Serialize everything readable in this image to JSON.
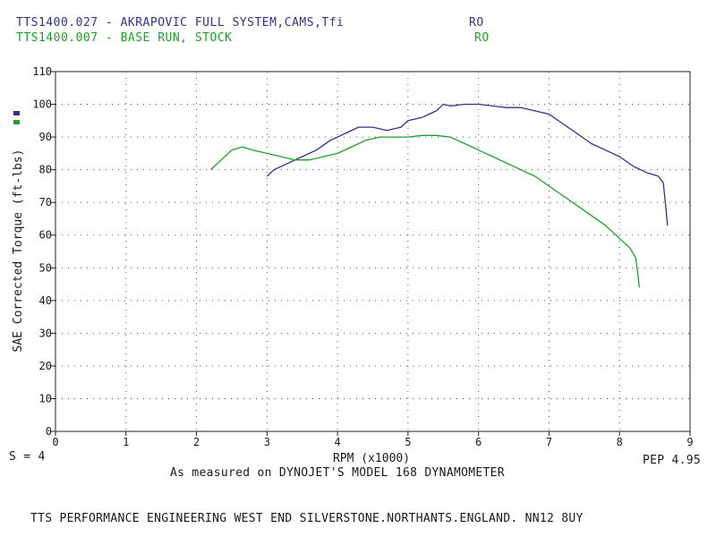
{
  "header": {
    "run1": {
      "name": "TTS1400.027 - AKRAPOVIC FULL SYSTEM,CAMS,Tfi",
      "tag": "RO",
      "color": "#33338a"
    },
    "run2": {
      "name": "TTS1400.007 - BASE RUN, STOCK",
      "tag": "RO",
      "color": "#1fa02c"
    }
  },
  "footer": {
    "smoothing": "S = 4",
    "measure_note": "As measured on DYNOJET'S MODEL 168 DYNAMOMETER",
    "version": "PEP 4.95",
    "company": "TTS PERFORMANCE ENGINEERING WEST END SILVERSTONE.NORTHANTS.ENGLAND. NN12 8UY"
  },
  "chart_data": {
    "type": "line",
    "xlabel": "RPM (x1000)",
    "ylabel": "SAE Corrected Torque (ft-lbs)",
    "xlim": [
      0,
      9
    ],
    "ylim": [
      0,
      110
    ],
    "x_ticks": [
      0,
      1,
      2,
      3,
      4,
      5,
      6,
      7,
      8,
      9
    ],
    "y_ticks": [
      0,
      10,
      20,
      30,
      40,
      50,
      60,
      70,
      80,
      90,
      100,
      110
    ],
    "grid": true,
    "series": [
      {
        "name": "TTS1400.027",
        "color": "#33338a",
        "x": [
          3.0,
          3.1,
          3.3,
          3.5,
          3.7,
          3.9,
          4.0,
          4.1,
          4.3,
          4.5,
          4.7,
          4.9,
          5.0,
          5.2,
          5.4,
          5.5,
          5.6,
          5.8,
          6.0,
          6.2,
          6.4,
          6.6,
          6.8,
          7.0,
          7.2,
          7.4,
          7.6,
          7.8,
          8.0,
          8.2,
          8.4,
          8.55,
          8.62,
          8.65,
          8.68
        ],
        "y": [
          78,
          80,
          82,
          84,
          86,
          89,
          90,
          91,
          93,
          93,
          92,
          93,
          95,
          96,
          98,
          100,
          99.5,
          100,
          100,
          99.5,
          99,
          99,
          98,
          97,
          94,
          91,
          88,
          86,
          84,
          81,
          79,
          78,
          76,
          70,
          63
        ]
      },
      {
        "name": "TTS1400.007",
        "color": "#1fa02c",
        "x": [
          2.2,
          2.35,
          2.5,
          2.65,
          2.8,
          3.0,
          3.2,
          3.4,
          3.6,
          3.8,
          4.0,
          4.2,
          4.4,
          4.6,
          4.8,
          5.0,
          5.2,
          5.4,
          5.6,
          5.8,
          6.0,
          6.2,
          6.4,
          6.6,
          6.8,
          7.0,
          7.2,
          7.4,
          7.6,
          7.8,
          8.0,
          8.15,
          8.23,
          8.26,
          8.28
        ],
        "y": [
          80,
          83,
          86,
          87,
          86,
          85,
          84,
          83,
          83,
          84,
          85,
          87,
          89,
          90,
          90,
          90,
          90.5,
          90.5,
          90,
          88,
          86,
          84,
          82,
          80,
          78,
          75,
          72,
          69,
          66,
          63,
          59,
          56,
          53,
          48,
          44
        ]
      }
    ]
  }
}
